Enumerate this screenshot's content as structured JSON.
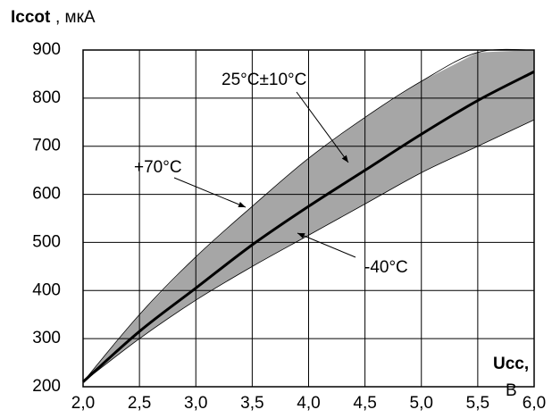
{
  "chart_data": {
    "type": "line",
    "ylabel_main": "Iccot",
    "ylabel_unit": ", мкА",
    "xlabel_main": "Ucc,",
    "xlabel_unit": "В",
    "x": [
      2.0,
      2.5,
      3.0,
      3.5,
      4.0,
      4.5,
      5.0,
      5.5,
      6.0
    ],
    "series": [
      {
        "name": "+70°C",
        "color": "#000000",
        "values": [
          210,
          350,
          470,
          575,
          675,
          760,
          835,
          895,
          900
        ]
      },
      {
        "name": "25°C±10°C",
        "color": "#000000",
        "values": [
          210,
          315,
          405,
          495,
          575,
          650,
          725,
          795,
          855
        ]
      },
      {
        "name": "-40°C",
        "color": "#000000",
        "values": [
          210,
          300,
          380,
          450,
          515,
          580,
          645,
          700,
          755
        ]
      }
    ],
    "band_color": "#a6a6a6",
    "xlim": [
      2.0,
      6.0
    ],
    "xticks": [
      {
        "value": 2.0,
        "label": "2,0"
      },
      {
        "value": 2.5,
        "label": "2,5"
      },
      {
        "value": 3.0,
        "label": "3,0"
      },
      {
        "value": 3.5,
        "label": "3,5"
      },
      {
        "value": 4.0,
        "label": "4,0"
      },
      {
        "value": 4.5,
        "label": "4,5"
      },
      {
        "value": 5.0,
        "label": "5,0"
      },
      {
        "value": 5.5,
        "label": "5,5"
      },
      {
        "value": 6.0,
        "label": "6,0"
      }
    ],
    "ylim": [
      200,
      900
    ],
    "yticks": [
      200,
      300,
      400,
      500,
      600,
      700,
      800,
      900
    ],
    "grid": true
  }
}
